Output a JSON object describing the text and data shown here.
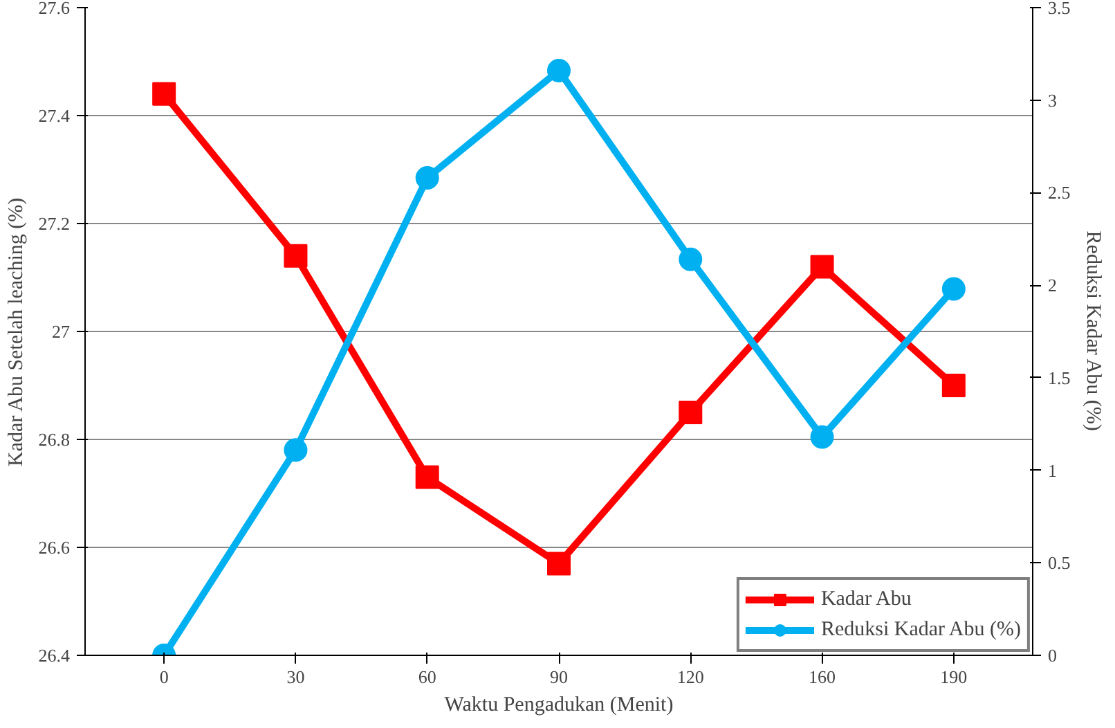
{
  "chart_data": {
    "type": "line",
    "xlabel": "Waktu Pengadukan (Menit)",
    "ylabel": "Kadar Abu Setelah leaching (%)",
    "y2label": "Reduksi Kadar Abu (%)",
    "categories": [
      "0",
      "30",
      "60",
      "90",
      "120",
      "160",
      "190"
    ],
    "series": [
      {
        "name": "Kadar Abu",
        "color": "#ff0000",
        "marker": "square",
        "values": [
          27.44,
          27.14,
          26.73,
          26.57,
          26.85,
          27.12,
          26.9
        ]
      },
      {
        "name": "Reduksi Kadar Abu (%)",
        "color": "#00b0f0",
        "marker": "circle",
        "axis": "y2",
        "values": [
          0,
          1.11,
          2.58,
          3.16,
          2.14,
          1.18,
          1.98
        ]
      }
    ],
    "ylim": [
      26.4,
      27.6
    ],
    "yticks": [
      26.4,
      26.6,
      26.8,
      27,
      27.2,
      27.4,
      27.6
    ],
    "y2lim": [
      0,
      3.5
    ],
    "y2ticks": [
      0,
      0.5,
      1,
      1.5,
      2,
      2.5,
      3,
      3.5
    ],
    "grid": "y",
    "legend": "bottom right",
    "line_style": "solid"
  }
}
